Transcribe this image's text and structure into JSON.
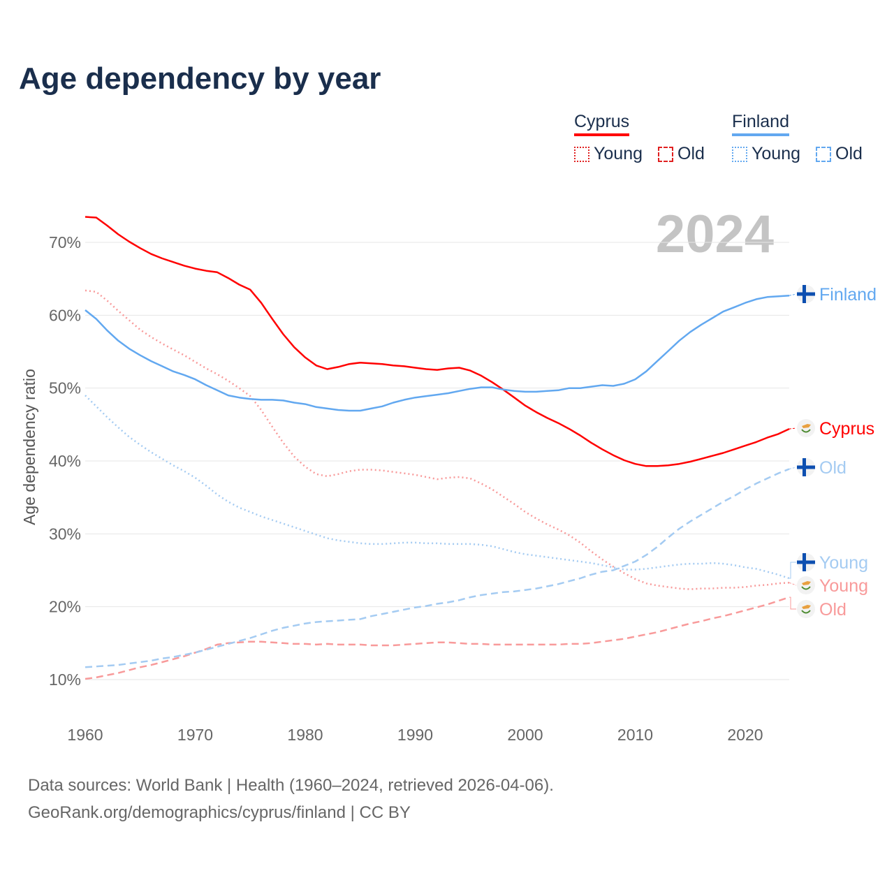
{
  "title": "Age dependency by year",
  "year_label": "2024",
  "legend": {
    "groups": [
      {
        "name": "Cyprus",
        "color": "#ff0000",
        "items": [
          "Young",
          "Old"
        ]
      },
      {
        "name": "Finland",
        "color": "#62a8f0",
        "items": [
          "Young",
          "Old"
        ]
      }
    ]
  },
  "source": {
    "line1": "Data sources: World Bank | Health (1960–2024, retrieved 2026-04-06).",
    "line2": "GeoRank.org/demographics/cyprus/finland | CC BY"
  },
  "chart_data": {
    "type": "line",
    "title": "Age dependency by year",
    "xlabel": "",
    "ylabel": "Age dependency ratio",
    "xlim": [
      1960,
      2024
    ],
    "ylim": [
      10,
      70
    ],
    "x_ticks": [
      "1960",
      "1970",
      "1980",
      "1990",
      "2000",
      "2010",
      "2020"
    ],
    "y_ticks": [
      "10%",
      "20%",
      "30%",
      "40%",
      "50%",
      "60%",
      "70%"
    ],
    "grid": true,
    "x_start": 1960,
    "series": [
      {
        "name": "Cyprus",
        "label": "Cyprus",
        "country": "Cyprus",
        "style": "solid",
        "color": "#ff0000",
        "values": [
          73.5,
          73.4,
          72.3,
          71.1,
          70.1,
          69.2,
          68.4,
          67.8,
          67.3,
          66.8,
          66.4,
          66.1,
          65.9,
          65.1,
          64.2,
          63.5,
          61.7,
          59.5,
          57.4,
          55.6,
          54.2,
          53.1,
          52.6,
          52.9,
          53.3,
          53.5,
          53.4,
          53.3,
          53.1,
          53.0,
          52.8,
          52.6,
          52.5,
          52.7,
          52.8,
          52.4,
          51.7,
          50.8,
          49.8,
          48.7,
          47.6,
          46.7,
          45.9,
          45.2,
          44.4,
          43.5,
          42.5,
          41.6,
          40.8,
          40.1,
          39.6,
          39.3,
          39.3,
          39.4,
          39.6,
          39.9,
          40.3,
          40.7,
          41.1,
          41.6,
          42.1,
          42.6,
          43.2,
          43.7,
          44.4
        ]
      },
      {
        "name": "Cyprus Young",
        "label": "Young",
        "country": "Cyprus",
        "style": "dotted",
        "color": "#f89a9a",
        "values": [
          63.4,
          63.2,
          62.0,
          60.6,
          59.3,
          58.0,
          57.0,
          56.1,
          55.3,
          54.5,
          53.6,
          52.7,
          51.9,
          51.0,
          50.0,
          48.9,
          47.0,
          44.7,
          42.5,
          40.6,
          39.2,
          38.2,
          37.9,
          38.2,
          38.6,
          38.8,
          38.8,
          38.7,
          38.5,
          38.3,
          38.1,
          37.8,
          37.5,
          37.7,
          37.8,
          37.6,
          36.9,
          36.1,
          35.1,
          34.1,
          33.0,
          32.1,
          31.3,
          30.6,
          29.8,
          28.8,
          27.6,
          26.5,
          25.5,
          24.6,
          23.8,
          23.2,
          22.9,
          22.7,
          22.5,
          22.4,
          22.5,
          22.5,
          22.6,
          22.6,
          22.7,
          22.9,
          23.0,
          23.2,
          23.3
        ]
      },
      {
        "name": "Cyprus Old",
        "label": "Old",
        "country": "Cyprus",
        "style": "dashed",
        "color": "#f89a9a",
        "values": [
          10.1,
          10.3,
          10.6,
          10.9,
          11.3,
          11.7,
          12.0,
          12.4,
          12.8,
          13.2,
          13.7,
          14.2,
          14.8,
          15.0,
          15.1,
          15.2,
          15.2,
          15.1,
          15.0,
          14.9,
          14.9,
          14.8,
          14.9,
          14.8,
          14.8,
          14.8,
          14.7,
          14.7,
          14.7,
          14.8,
          14.9,
          15.0,
          15.1,
          15.1,
          15.0,
          14.9,
          14.9,
          14.8,
          14.8,
          14.8,
          14.8,
          14.8,
          14.8,
          14.8,
          14.9,
          14.9,
          15.0,
          15.2,
          15.4,
          15.6,
          15.9,
          16.2,
          16.5,
          16.9,
          17.3,
          17.7,
          18.0,
          18.4,
          18.7,
          19.1,
          19.5,
          19.9,
          20.3,
          20.8,
          21.3
        ]
      },
      {
        "name": "Finland",
        "label": "Finland",
        "country": "Finland",
        "style": "solid",
        "color": "#62a8f0",
        "values": [
          60.7,
          59.5,
          57.9,
          56.5,
          55.4,
          54.5,
          53.7,
          53.0,
          52.3,
          51.8,
          51.2,
          50.4,
          49.7,
          49.0,
          48.7,
          48.5,
          48.4,
          48.4,
          48.3,
          48.0,
          47.8,
          47.4,
          47.2,
          47.0,
          46.9,
          46.9,
          47.2,
          47.5,
          48.0,
          48.4,
          48.7,
          48.9,
          49.1,
          49.3,
          49.6,
          49.9,
          50.1,
          50.1,
          49.8,
          49.6,
          49.5,
          49.5,
          49.6,
          49.7,
          50.0,
          50.0,
          50.2,
          50.4,
          50.3,
          50.6,
          51.2,
          52.3,
          53.7,
          55.1,
          56.5,
          57.7,
          58.7,
          59.6,
          60.5,
          61.1,
          61.7,
          62.2,
          62.5,
          62.6,
          62.7
        ]
      },
      {
        "name": "Finland Young",
        "label": "Young",
        "country": "Finland",
        "style": "dotted",
        "color": "#a4cbf2",
        "values": [
          49.0,
          47.5,
          46.0,
          44.6,
          43.3,
          42.2,
          41.2,
          40.3,
          39.4,
          38.6,
          37.7,
          36.6,
          35.4,
          34.4,
          33.6,
          33.0,
          32.4,
          31.9,
          31.4,
          30.9,
          30.4,
          29.9,
          29.4,
          29.1,
          28.9,
          28.7,
          28.6,
          28.6,
          28.7,
          28.8,
          28.8,
          28.7,
          28.7,
          28.6,
          28.6,
          28.6,
          28.5,
          28.3,
          27.9,
          27.5,
          27.2,
          27.0,
          26.8,
          26.6,
          26.4,
          26.2,
          26.0,
          25.7,
          25.4,
          25.1,
          25.1,
          25.2,
          25.4,
          25.6,
          25.8,
          25.9,
          25.9,
          26.0,
          25.9,
          25.7,
          25.4,
          25.2,
          24.8,
          24.4,
          23.9
        ]
      },
      {
        "name": "Finland Old",
        "label": "Old",
        "country": "Finland",
        "style": "dashed",
        "color": "#a4cbf2",
        "values": [
          11.7,
          11.8,
          11.9,
          12.0,
          12.2,
          12.4,
          12.6,
          12.9,
          13.1,
          13.4,
          13.7,
          14.1,
          14.5,
          14.9,
          15.3,
          15.7,
          16.2,
          16.7,
          17.1,
          17.4,
          17.7,
          17.9,
          18.0,
          18.1,
          18.2,
          18.3,
          18.7,
          19.0,
          19.3,
          19.6,
          19.9,
          20.1,
          20.4,
          20.6,
          20.9,
          21.3,
          21.6,
          21.8,
          22.0,
          22.1,
          22.3,
          22.5,
          22.8,
          23.1,
          23.5,
          23.9,
          24.4,
          24.8,
          25.0,
          25.6,
          26.2,
          27.1,
          28.2,
          29.5,
          30.7,
          31.7,
          32.6,
          33.5,
          34.4,
          35.2,
          36.1,
          36.9,
          37.6,
          38.3,
          38.9
        ]
      }
    ]
  }
}
